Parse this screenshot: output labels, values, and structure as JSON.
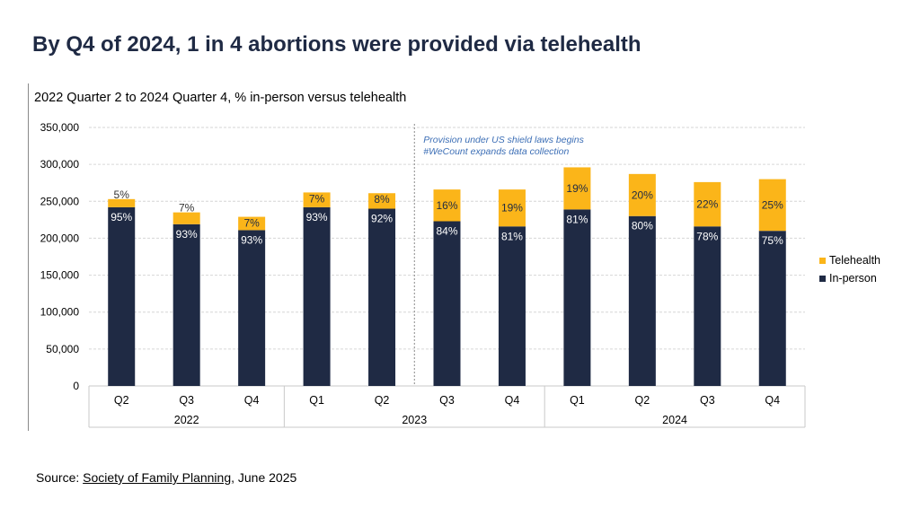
{
  "slide": {
    "title": "By Q4 of 2024, 1 in 4 abortions were provided via telehealth",
    "source_prefix": "Source: ",
    "source_link": "Society of Family Planning",
    "source_suffix": ", June 2025"
  },
  "colors": {
    "in_person": "#1f2a44",
    "telehealth": "#fbb519",
    "annotation": "#3d6fb6",
    "title": "#1f2a44"
  },
  "chart_data": {
    "type": "bar",
    "stacked": true,
    "title": "2022 Quarter 2 to 2024 Quarter 4, % in-person versus telehealth",
    "categories": [
      "Q2",
      "Q3",
      "Q4",
      "Q1",
      "Q2",
      "Q3",
      "Q4",
      "Q1",
      "Q2",
      "Q3",
      "Q4"
    ],
    "year_groups": [
      {
        "label": "2022",
        "count": 3
      },
      {
        "label": "2023",
        "count": 4
      },
      {
        "label": "2024",
        "count": 4
      }
    ],
    "series": [
      {
        "name": "In-person",
        "color": "#1f2a44",
        "values": [
          242000,
          219000,
          211000,
          242000,
          240000,
          223000,
          216000,
          239000,
          230000,
          216000,
          210000
        ],
        "labels": [
          "95%",
          "93%",
          "93%",
          "93%",
          "92%",
          "84%",
          "81%",
          "81%",
          "80%",
          "78%",
          "75%"
        ]
      },
      {
        "name": "Telehealth",
        "color": "#fbb519",
        "values": [
          11000,
          16000,
          18000,
          20000,
          21000,
          43000,
          50000,
          57000,
          57000,
          60000,
          70000
        ],
        "labels": [
          "5%",
          "7%",
          "7%",
          "7%",
          "8%",
          "16%",
          "19%",
          "19%",
          "20%",
          "22%",
          "25%"
        ]
      }
    ],
    "ylim": [
      0,
      350000
    ],
    "yticks": [
      0,
      50000,
      100000,
      150000,
      200000,
      250000,
      300000,
      350000
    ],
    "ytick_labels": [
      "0",
      "50,000",
      "100,000",
      "150,000",
      "200,000",
      "250,000",
      "300,000",
      "350,000"
    ],
    "grid": true,
    "legend": {
      "position": "right",
      "entries": [
        "Telehealth",
        "In-person"
      ]
    },
    "annotation": {
      "after_category_index": 4,
      "lines": [
        "Provision under US shield laws begins",
        "#WeCount expands data collection"
      ]
    }
  }
}
